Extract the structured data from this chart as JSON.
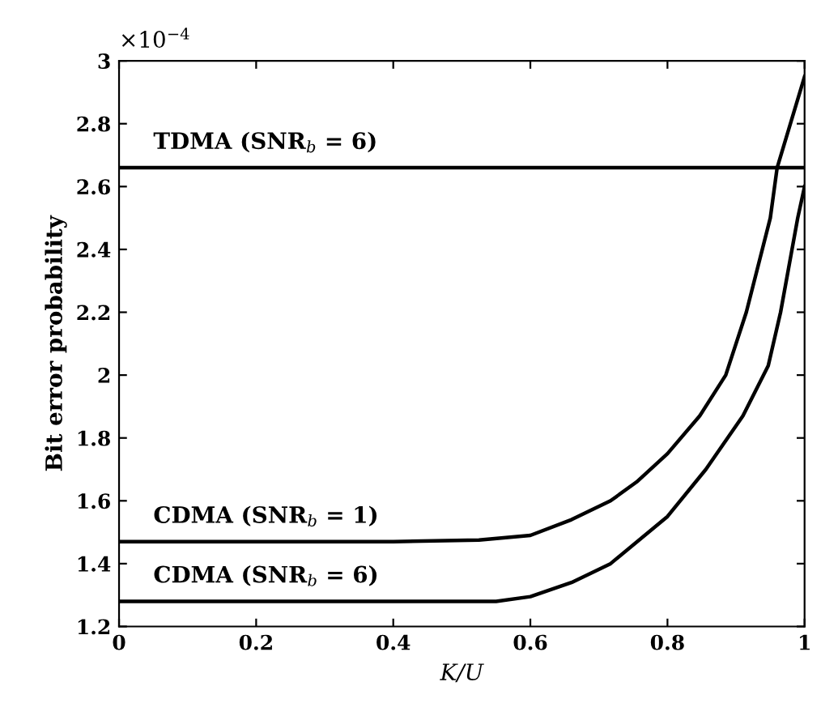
{
  "chart_data": {
    "type": "line",
    "xlabel": "K/U",
    "ylabel": "Bit error probability",
    "annotations": [
      "×10$^{−4}$",
      {
        "text": "TDMA (SNR$_{b}$ = 6)",
        "y": 2.66
      },
      {
        "text": "CDMA (SNR$_{b}$ = 1)",
        "y": 1.47
      },
      {
        "text": "CDMA (SNR$_{b}$ = 6)",
        "y": 1.28
      }
    ],
    "series": [
      {
        "color": "#000000",
        "x": [
          0,
          1
        ],
        "values": [
          2.66,
          2.66
        ]
      },
      {
        "color": "#000000",
        "x": [
          0,
          0.4,
          0.525,
          0.6,
          0.66,
          0.717,
          0.755,
          0.8,
          0.847,
          0.885,
          0.915,
          0.95,
          0.96,
          1.0
        ],
        "values": [
          1.47,
          1.47,
          1.475,
          1.49,
          1.54,
          1.6,
          1.66,
          1.75,
          1.87,
          2.0,
          2.2,
          2.5,
          2.66,
          2.95
        ]
      },
      {
        "color": "#000000",
        "x": [
          0,
          0.55,
          0.6,
          0.66,
          0.717,
          0.8,
          0.856,
          0.91,
          0.947,
          0.965,
          0.99,
          1.0
        ],
        "values": [
          1.28,
          1.28,
          1.295,
          1.34,
          1.4,
          1.55,
          1.7,
          1.87,
          2.03,
          2.2,
          2.5,
          2.6
        ]
      }
    ],
    "xlim": [
      0,
      1
    ],
    "ylim": [
      1.2,
      3
    ],
    "xticks": [
      0,
      0.2,
      0.4,
      0.6,
      0.8,
      1
    ],
    "yticks": [
      1.2,
      1.4,
      1.6,
      1.8,
      2,
      2.2,
      2.4,
      2.6,
      2.8,
      3
    ],
    "grid": false,
    "legend": false,
    "marker": "none",
    "line_style": "solid"
  }
}
